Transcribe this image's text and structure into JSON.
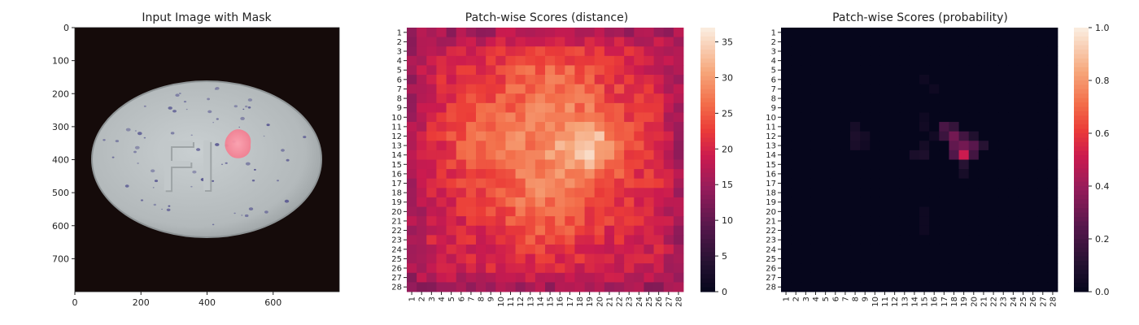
{
  "chart_data": [
    {
      "type": "image",
      "title": "Input Image with Mask",
      "xticks": [
        0,
        200,
        400,
        600
      ],
      "yticks": [
        0,
        100,
        200,
        300,
        400,
        500,
        600,
        700
      ],
      "xlim": [
        0,
        800
      ],
      "ylim": [
        800,
        0
      ],
      "image": {
        "background_color": "#150b0a",
        "pill_color": "#b6bcbe",
        "pill_edge_color": "#8e9496",
        "speck_color": "#5b5a92",
        "engraving": "FI",
        "mask_color": "#ff8a9a"
      }
    },
    {
      "type": "heatmap",
      "title": "Patch-wise Scores (distance)",
      "rows": [
        "1",
        "2",
        "3",
        "4",
        "5",
        "6",
        "7",
        "8",
        "9",
        "10",
        "11",
        "12",
        "13",
        "14",
        "15",
        "16",
        "17",
        "18",
        "19",
        "20",
        "21",
        "22",
        "23",
        "24",
        "25",
        "26",
        "27",
        "28"
      ],
      "cols": [
        "1",
        "2",
        "3",
        "4",
        "5",
        "6",
        "7",
        "8",
        "9",
        "10",
        "11",
        "12",
        "13",
        "14",
        "15",
        "16",
        "17",
        "18",
        "19",
        "20",
        "21",
        "22",
        "23",
        "24",
        "25",
        "26",
        "27",
        "28"
      ],
      "colormap": "rocket",
      "vmin": 0,
      "vmax": 37,
      "colorbar_ticks": [
        0,
        5,
        10,
        15,
        20,
        25,
        30,
        35
      ],
      "value_model": {
        "base": 19,
        "noise": 2.5,
        "seed": 7,
        "blobs": [
          {
            "row": 13,
            "col": 15,
            "sr": 6.5,
            "sc": 6.5,
            "amp": 9
          },
          {
            "row": 13,
            "col": 19,
            "sr": 2.0,
            "sc": 2.0,
            "amp": 8
          },
          {
            "row": 12,
            "col": 8,
            "sr": 2.5,
            "sc": 2.5,
            "amp": 3
          },
          {
            "row": 6,
            "col": 15,
            "sr": 2.0,
            "sc": 3.0,
            "amp": 3
          },
          {
            "row": 21,
            "col": 14,
            "sr": 3.0,
            "sc": 3.0,
            "amp": 3
          }
        ],
        "clip": [
          8,
          37
        ]
      }
    },
    {
      "type": "heatmap",
      "title": "Patch-wise Scores (probability)",
      "rows": [
        "1",
        "2",
        "3",
        "4",
        "5",
        "6",
        "7",
        "8",
        "9",
        "10",
        "11",
        "12",
        "13",
        "14",
        "15",
        "16",
        "17",
        "18",
        "19",
        "20",
        "21",
        "22",
        "23",
        "24",
        "25",
        "26",
        "27",
        "28"
      ],
      "cols": [
        "1",
        "2",
        "3",
        "4",
        "5",
        "6",
        "7",
        "8",
        "9",
        "10",
        "11",
        "12",
        "13",
        "14",
        "15",
        "16",
        "17",
        "18",
        "19",
        "20",
        "21",
        "22",
        "23",
        "24",
        "25",
        "26",
        "27",
        "28"
      ],
      "colormap": "rocket",
      "vmin": 0,
      "vmax": 1,
      "colorbar_ticks": [
        0.0,
        0.2,
        0.4,
        0.6,
        0.8,
        1.0
      ],
      "colorbar_tick_labels": [
        "0.0",
        "0.2",
        "0.4",
        "0.6",
        "0.8",
        "1.0"
      ],
      "cells": [
        {
          "row": 11,
          "col": 17,
          "value": 0.22
        },
        {
          "row": 11,
          "col": 18,
          "value": 0.16
        },
        {
          "row": 12,
          "col": 17,
          "value": 0.18
        },
        {
          "row": 12,
          "col": 18,
          "value": 0.32
        },
        {
          "row": 12,
          "col": 19,
          "value": 0.2
        },
        {
          "row": 12,
          "col": 20,
          "value": 0.1
        },
        {
          "row": 13,
          "col": 18,
          "value": 0.28
        },
        {
          "row": 13,
          "col": 19,
          "value": 0.32
        },
        {
          "row": 13,
          "col": 20,
          "value": 0.26
        },
        {
          "row": 13,
          "col": 21,
          "value": 0.12
        },
        {
          "row": 14,
          "col": 18,
          "value": 0.24
        },
        {
          "row": 14,
          "col": 19,
          "value": 0.52
        },
        {
          "row": 14,
          "col": 20,
          "value": 0.2
        },
        {
          "row": 15,
          "col": 19,
          "value": 0.12
        },
        {
          "row": 16,
          "col": 19,
          "value": 0.07
        },
        {
          "row": 11,
          "col": 8,
          "value": 0.07
        },
        {
          "row": 12,
          "col": 8,
          "value": 0.09
        },
        {
          "row": 13,
          "col": 8,
          "value": 0.08
        },
        {
          "row": 12,
          "col": 9,
          "value": 0.06
        },
        {
          "row": 13,
          "col": 9,
          "value": 0.05
        },
        {
          "row": 11,
          "col": 15,
          "value": 0.05
        },
        {
          "row": 13,
          "col": 15,
          "value": 0.06
        },
        {
          "row": 14,
          "col": 14,
          "value": 0.08
        },
        {
          "row": 14,
          "col": 15,
          "value": 0.09
        },
        {
          "row": 10,
          "col": 15,
          "value": 0.04
        },
        {
          "row": 6,
          "col": 15,
          "value": 0.04
        },
        {
          "row": 7,
          "col": 16,
          "value": 0.04
        },
        {
          "row": 12,
          "col": 16,
          "value": 0.05
        },
        {
          "row": 20,
          "col": 15,
          "value": 0.04
        },
        {
          "row": 21,
          "col": 15,
          "value": 0.04
        },
        {
          "row": 22,
          "col": 15,
          "value": 0.04
        }
      ],
      "background_value": 0.01
    }
  ]
}
